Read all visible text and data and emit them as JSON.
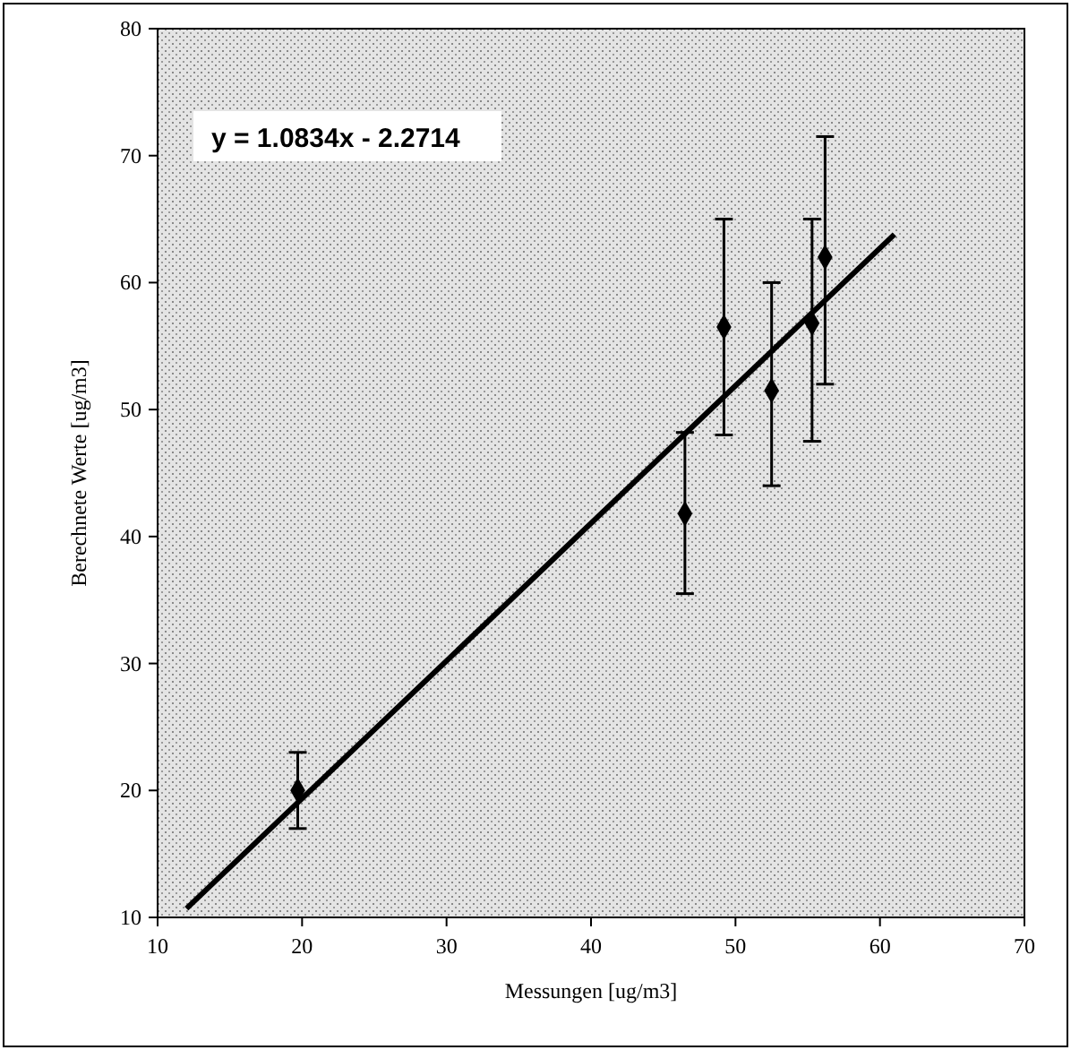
{
  "chart_data": {
    "type": "scatter",
    "xlabel": "Messungen [ug/m3]",
    "ylabel": "Berechnete Werte [ug/m3]",
    "xlim": [
      10,
      70
    ],
    "ylim": [
      10,
      80
    ],
    "xticks": [
      10,
      20,
      30,
      40,
      50,
      60,
      70
    ],
    "yticks": [
      10,
      20,
      30,
      40,
      50,
      60,
      70,
      80
    ],
    "grid": false,
    "annotations": [
      "y = 1.0834x - 2.2714"
    ],
    "series": [
      {
        "color": "#000000",
        "marker": "diamond",
        "x": [
          19.7,
          46.5,
          49.2,
          52.5,
          55.3,
          56.2
        ],
        "values": [
          20,
          41.8,
          56.5,
          51.5,
          56.8,
          62
        ],
        "errors": [
          [
            17,
            23
          ],
          [
            35.5,
            48.2
          ],
          [
            48,
            65
          ],
          [
            44,
            60
          ],
          [
            47.5,
            65
          ],
          [
            52,
            71.5
          ]
        ]
      },
      {
        "type": "line",
        "color": "#000000",
        "marker": "none",
        "line_style": "solid",
        "x": [
          12,
          61
        ],
        "values": [
          10.7,
          63.8
        ]
      }
    ]
  }
}
